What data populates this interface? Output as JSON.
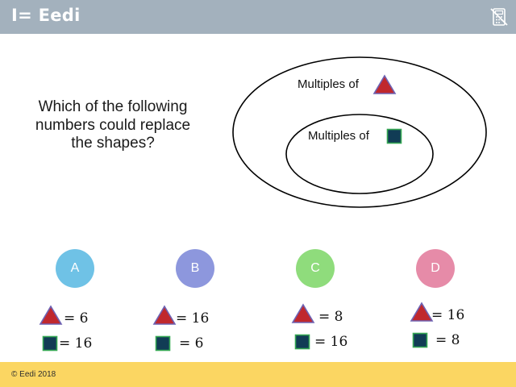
{
  "header": {
    "logo_text": "I= Eedi",
    "calculator_icon": "no-calculator-icon"
  },
  "question": {
    "text": "Which of the following numbers could replace the shapes?"
  },
  "venn": {
    "outer_label": "Multiples of",
    "inner_label": "Multiples of",
    "outer_shape": "triangle-icon",
    "inner_shape": "square-icon"
  },
  "colors": {
    "triangle_fill": "#c0282d",
    "triangle_stroke": "#6e63b4",
    "square_fill": "#113c55",
    "square_stroke": "#34a853",
    "option_a": "#6fc2e6",
    "option_b": "#8d97dd",
    "option_c": "#8fdc7c",
    "option_d": "#e68ba8",
    "footer": "#fbd662",
    "header": "#a3b1bd"
  },
  "options": [
    {
      "letter": "A",
      "triangle_eq": "= 6",
      "square_eq": "= 16"
    },
    {
      "letter": "B",
      "triangle_eq": "= 16",
      "square_eq": "= 6"
    },
    {
      "letter": "C",
      "triangle_eq": "= 8",
      "square_eq": "= 16"
    },
    {
      "letter": "D",
      "triangle_eq": "= 16",
      "square_eq": "= 8"
    }
  ],
  "footer": {
    "copyright": "© Eedi 2018"
  }
}
